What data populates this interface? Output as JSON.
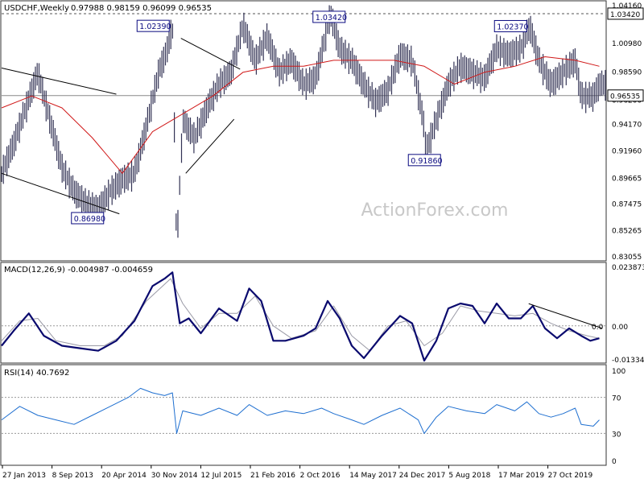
{
  "chart_data": [
    {
      "panel": "price",
      "type": "candlestick",
      "title": "USDCHF,Weekly",
      "ohlc_text": "0.97988 0.98159 0.96099 0.96535",
      "ylim": [
        0.83055,
        1.0416
      ],
      "y_ticks": [
        "1.04160",
        "1.00980",
        "0.98590",
        "0.96200",
        "0.94170",
        "0.91960",
        "0.89665",
        "0.87475",
        "0.85265",
        "0.83055"
      ],
      "last_price": "0.96535",
      "last_price_value": 0.96535,
      "high_line_label": "1.03420",
      "high_line_value": 1.0342,
      "watermark": "ActionForex.com",
      "annotations": [
        {
          "label": "1.02390",
          "t": 0.283,
          "value": 1.0239
        },
        {
          "label": "1.03420",
          "t": 0.545,
          "value": 1.0342
        },
        {
          "label": "0.91860",
          "t": 0.703,
          "value": 0.9186
        },
        {
          "label": "1.02370",
          "t": 0.875,
          "value": 1.0237
        },
        {
          "label": "0.86980",
          "t": 0.145,
          "value": 0.8698
        }
      ],
      "series": [
        {
          "name": "price",
          "color": "#333355",
          "points": [
            [
              0,
              0.9
            ],
            [
              0.02,
              0.925
            ],
            [
              0.04,
              0.955
            ],
            [
              0.06,
              0.985
            ],
            [
              0.08,
              0.945
            ],
            [
              0.1,
              0.905
            ],
            [
              0.12,
              0.885
            ],
            [
              0.14,
              0.875
            ],
            [
              0.16,
              0.87
            ],
            [
              0.18,
              0.885
            ],
            [
              0.2,
              0.895
            ],
            [
              0.22,
              0.9
            ],
            [
              0.24,
              0.94
            ],
            [
              0.26,
              0.985
            ],
            [
              0.275,
              1.005
            ],
            [
              0.283,
              1.0239
            ],
            [
              0.29,
              0.835
            ],
            [
              0.3,
              0.945
            ],
            [
              0.32,
              0.93
            ],
            [
              0.34,
              0.955
            ],
            [
              0.36,
              0.975
            ],
            [
              0.38,
              0.985
            ],
            [
              0.4,
              1.025
            ],
            [
              0.42,
              0.995
            ],
            [
              0.44,
              1.015
            ],
            [
              0.46,
              0.985
            ],
            [
              0.48,
              0.995
            ],
            [
              0.5,
              0.975
            ],
            [
              0.52,
              0.98
            ],
            [
              0.545,
              1.0342
            ],
            [
              0.56,
              1.005
            ],
            [
              0.58,
              0.995
            ],
            [
              0.6,
              0.975
            ],
            [
              0.62,
              0.96
            ],
            [
              0.64,
              0.97
            ],
            [
              0.66,
              1.0
            ],
            [
              0.68,
              0.995
            ],
            [
              0.7,
              0.94
            ],
            [
              0.703,
              0.9186
            ],
            [
              0.72,
              0.945
            ],
            [
              0.74,
              0.975
            ],
            [
              0.76,
              0.99
            ],
            [
              0.78,
              0.985
            ],
            [
              0.8,
              0.98
            ],
            [
              0.82,
              1.005
            ],
            [
              0.84,
              1.0
            ],
            [
              0.86,
              1.005
            ],
            [
              0.875,
              1.0237
            ],
            [
              0.89,
              0.995
            ],
            [
              0.91,
              0.975
            ],
            [
              0.93,
              0.985
            ],
            [
              0.95,
              0.995
            ],
            [
              0.96,
              0.965
            ],
            [
              0.98,
              0.965
            ],
            [
              0.99,
              0.975
            ]
          ]
        },
        {
          "name": "moving average",
          "color": "#d01818",
          "points": [
            [
              0,
              0.955
            ],
            [
              0.05,
              0.965
            ],
            [
              0.1,
              0.955
            ],
            [
              0.15,
              0.93
            ],
            [
              0.2,
              0.9
            ],
            [
              0.25,
              0.935
            ],
            [
              0.3,
              0.95
            ],
            [
              0.35,
              0.965
            ],
            [
              0.4,
              0.985
            ],
            [
              0.45,
              0.99
            ],
            [
              0.5,
              0.99
            ],
            [
              0.55,
              0.995
            ],
            [
              0.6,
              0.995
            ],
            [
              0.65,
              0.995
            ],
            [
              0.7,
              0.99
            ],
            [
              0.75,
              0.975
            ],
            [
              0.8,
              0.985
            ],
            [
              0.85,
              0.99
            ],
            [
              0.9,
              0.998
            ],
            [
              0.95,
              0.995
            ],
            [
              0.99,
              0.99
            ]
          ]
        }
      ],
      "trendlines": [
        {
          "t1": 0.0,
          "v1": 0.9885,
          "t2": 0.19,
          "v2": 0.9665
        },
        {
          "t1": 0.0,
          "v1": 0.9,
          "t2": 0.195,
          "v2": 0.866
        },
        {
          "t1": 0.297,
          "v1": 1.0135,
          "t2": 0.395,
          "v2": 0.9875
        },
        {
          "t1": 0.305,
          "v1": 0.9,
          "t2": 0.385,
          "v2": 0.9455
        }
      ]
    },
    {
      "panel": "macd",
      "type": "line",
      "title": "MACD(12,26,9) -0.004987 -0.004659",
      "ylim": [
        -0.013346,
        0.023873
      ],
      "y_ticks": [
        "0.023873",
        "0.00",
        "-0.013346"
      ],
      "zero_labels": [
        "0.0"
      ],
      "series": [
        {
          "name": "MACD",
          "color": "#0a0a6e",
          "points": [
            [
              0,
              -0.008
            ],
            [
              0.02,
              -0.002
            ],
            [
              0.045,
              0.005
            ],
            [
              0.07,
              -0.004
            ],
            [
              0.1,
              -0.008
            ],
            [
              0.13,
              -0.009
            ],
            [
              0.16,
              -0.01
            ],
            [
              0.19,
              -0.006
            ],
            [
              0.22,
              0.002
            ],
            [
              0.25,
              0.016
            ],
            [
              0.27,
              0.019
            ],
            [
              0.283,
              0.0215
            ],
            [
              0.295,
              0.001
            ],
            [
              0.31,
              0.003
            ],
            [
              0.33,
              -0.003
            ],
            [
              0.36,
              0.007
            ],
            [
              0.39,
              0.002
            ],
            [
              0.41,
              0.015
            ],
            [
              0.43,
              0.01
            ],
            [
              0.45,
              -0.006
            ],
            [
              0.47,
              -0.006
            ],
            [
              0.5,
              -0.004
            ],
            [
              0.52,
              -0.001
            ],
            [
              0.54,
              0.01
            ],
            [
              0.56,
              0.003
            ],
            [
              0.58,
              -0.008
            ],
            [
              0.6,
              -0.013
            ],
            [
              0.63,
              -0.004
            ],
            [
              0.66,
              0.004
            ],
            [
              0.68,
              0.001
            ],
            [
              0.7,
              -0.014
            ],
            [
              0.72,
              -0.006
            ],
            [
              0.74,
              0.007
            ],
            [
              0.76,
              0.009
            ],
            [
              0.78,
              0.008
            ],
            [
              0.8,
              0.001
            ],
            [
              0.82,
              0.009
            ],
            [
              0.84,
              0.003
            ],
            [
              0.86,
              0.003
            ],
            [
              0.88,
              0.008
            ],
            [
              0.9,
              -0.001
            ],
            [
              0.92,
              -0.005
            ],
            [
              0.94,
              -0.001
            ],
            [
              0.96,
              -0.004
            ],
            [
              0.975,
              -0.006
            ],
            [
              0.99,
              -0.005
            ]
          ]
        },
        {
          "name": "Signal",
          "color": "#9a9aa6",
          "points": [
            [
              0,
              -0.006
            ],
            [
              0.03,
              0.002
            ],
            [
              0.06,
              0.003
            ],
            [
              0.09,
              -0.006
            ],
            [
              0.13,
              -0.008
            ],
            [
              0.17,
              -0.008
            ],
            [
              0.2,
              -0.004
            ],
            [
              0.24,
              0.01
            ],
            [
              0.28,
              0.019
            ],
            [
              0.3,
              0.009
            ],
            [
              0.33,
              -0.001
            ],
            [
              0.36,
              0.005
            ],
            [
              0.39,
              0.005
            ],
            [
              0.42,
              0.012
            ],
            [
              0.45,
              0.0
            ],
            [
              0.48,
              -0.005
            ],
            [
              0.52,
              -0.002
            ],
            [
              0.55,
              0.008
            ],
            [
              0.58,
              -0.004
            ],
            [
              0.61,
              -0.01
            ],
            [
              0.64,
              0.0
            ],
            [
              0.67,
              0.002
            ],
            [
              0.7,
              -0.008
            ],
            [
              0.73,
              -0.003
            ],
            [
              0.76,
              0.008
            ],
            [
              0.79,
              0.006
            ],
            [
              0.82,
              0.005
            ],
            [
              0.85,
              0.004
            ],
            [
              0.88,
              0.005
            ],
            [
              0.91,
              0.001
            ],
            [
              0.94,
              -0.002
            ],
            [
              0.97,
              -0.004
            ],
            [
              0.99,
              -0.005
            ]
          ]
        }
      ],
      "trendlines": [
        {
          "t1": 0.873,
          "v1": 0.0089,
          "t2": 0.995,
          "v2": -0.001
        }
      ]
    },
    {
      "panel": "rsi",
      "type": "line",
      "title": "RSI(14) 40.7692",
      "ylim": [
        0,
        100
      ],
      "y_ticks": [
        "100",
        "70",
        "30",
        "0"
      ],
      "levels": [
        70,
        30
      ],
      "series": [
        {
          "name": "RSI",
          "color": "#1e6fd0",
          "points": [
            [
              0,
              45
            ],
            [
              0.03,
              60
            ],
            [
              0.06,
              50
            ],
            [
              0.09,
              45
            ],
            [
              0.12,
              40
            ],
            [
              0.15,
              50
            ],
            [
              0.18,
              60
            ],
            [
              0.21,
              70
            ],
            [
              0.23,
              80
            ],
            [
              0.25,
              75
            ],
            [
              0.27,
              72
            ],
            [
              0.283,
              75
            ],
            [
              0.29,
              30
            ],
            [
              0.3,
              55
            ],
            [
              0.33,
              50
            ],
            [
              0.36,
              58
            ],
            [
              0.39,
              50
            ],
            [
              0.41,
              62
            ],
            [
              0.44,
              50
            ],
            [
              0.47,
              55
            ],
            [
              0.5,
              52
            ],
            [
              0.53,
              58
            ],
            [
              0.55,
              52
            ],
            [
              0.58,
              45
            ],
            [
              0.6,
              40
            ],
            [
              0.63,
              50
            ],
            [
              0.66,
              58
            ],
            [
              0.69,
              45
            ],
            [
              0.7,
              30
            ],
            [
              0.72,
              48
            ],
            [
              0.74,
              60
            ],
            [
              0.77,
              55
            ],
            [
              0.8,
              52
            ],
            [
              0.82,
              62
            ],
            [
              0.85,
              55
            ],
            [
              0.87,
              65
            ],
            [
              0.89,
              52
            ],
            [
              0.91,
              48
            ],
            [
              0.93,
              52
            ],
            [
              0.95,
              58
            ],
            [
              0.96,
              40
            ],
            [
              0.98,
              38
            ],
            [
              0.99,
              45
            ]
          ]
        }
      ]
    }
  ],
  "x_axis_labels": [
    "27 Jan 2013",
    "8 Sep 2013",
    "20 Apr 2014",
    "30 Nov 2014",
    "12 Jul 2015",
    "21 Feb 2016",
    "2 Oct 2016",
    "14 May 2017",
    "24 Dec 2017",
    "5 Aug 2018",
    "17 Mar 2019",
    "27 Oct 2019"
  ],
  "colors": {
    "price_bars": "#333355",
    "moving_average": "#d01818",
    "macd": "#0a0a6e",
    "signal": "#9a9aa6",
    "rsi": "#1e6fd0",
    "annotation_text": "#0a0a80",
    "watermark": "#c8c8c8"
  }
}
